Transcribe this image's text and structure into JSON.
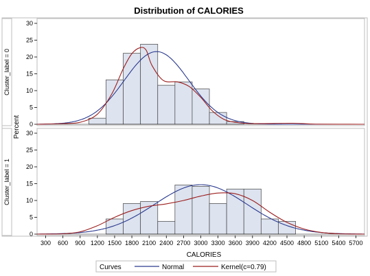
{
  "chart_data": {
    "type": "histogram",
    "title": "Distribution of CALORIES",
    "xlabel": "CALORIES",
    "ylabel": "Percent",
    "xlim": [
      150,
      5850
    ],
    "ylim": [
      0,
      30
    ],
    "x_ticks": [
      300,
      600,
      900,
      1200,
      1500,
      1800,
      2100,
      2400,
      2700,
      3000,
      3300,
      3600,
      3900,
      4200,
      4500,
      4800,
      5100,
      5400,
      5700
    ],
    "y_ticks": [
      0,
      5,
      10,
      15,
      20,
      25,
      30
    ],
    "bin_width": 300,
    "colors": {
      "bar_fill": "#dde3ef",
      "bar_edge": "#555555",
      "normal": "#2a3a8f",
      "kernel": "#9b1c1c"
    },
    "panels": [
      {
        "label": "Cluster_label = 0",
        "bin_starts": [
          1050,
          1350,
          1650,
          1950,
          2250,
          2550,
          2850,
          3150,
          3450
        ],
        "bin_values": [
          1.8,
          13.2,
          21.1,
          23.8,
          11.6,
          12.6,
          10.5,
          3.5,
          0.8
        ],
        "normal": {
          "mean": 2230,
          "sd": 560,
          "peak": 21.6
        },
        "kernel": {
          "points": [
            [
              150,
              0
            ],
            [
              600,
              0.2
            ],
            [
              900,
              0.6
            ],
            [
              1200,
              3.0
            ],
            [
              1450,
              9.0
            ],
            [
              1650,
              16.5
            ],
            [
              1800,
              21.0
            ],
            [
              1950,
              22.8
            ],
            [
              2050,
              22.0
            ],
            [
              2150,
              17.5
            ],
            [
              2350,
              13.0
            ],
            [
              2600,
              12.6
            ],
            [
              2800,
              11.2
            ],
            [
              3000,
              8.0
            ],
            [
              3200,
              4.0
            ],
            [
              3400,
              1.5
            ],
            [
              3600,
              0.6
            ],
            [
              3900,
              0.2
            ],
            [
              4600,
              0.3
            ],
            [
              5000,
              0.05
            ],
            [
              5850,
              0
            ]
          ]
        }
      },
      {
        "label": "Cluster_label = 1",
        "bin_starts": [
          1350,
          1650,
          1950,
          2250,
          2550,
          2850,
          3150,
          3450,
          3750,
          4050,
          4350
        ],
        "bin_values": [
          4.5,
          9.1,
          9.7,
          3.8,
          14.6,
          14.2,
          9.1,
          13.4,
          13.4,
          4.5,
          3.8
        ],
        "normal": {
          "mean": 3000,
          "sd": 800,
          "peak": 14.7
        },
        "kernel": {
          "points": [
            [
              150,
              0
            ],
            [
              600,
              0.1
            ],
            [
              900,
              0.7
            ],
            [
              1200,
              2.5
            ],
            [
              1500,
              5.0
            ],
            [
              1800,
              7.0
            ],
            [
              2100,
              8.3
            ],
            [
              2400,
              9.0
            ],
            [
              2700,
              10.0
            ],
            [
              3000,
              11.3
            ],
            [
              3300,
              12.2
            ],
            [
              3600,
              12.0
            ],
            [
              3900,
              10.0
            ],
            [
              4200,
              6.5
            ],
            [
              4500,
              3.5
            ],
            [
              4800,
              1.5
            ],
            [
              5100,
              0.5
            ],
            [
              5400,
              0.1
            ],
            [
              5850,
              0
            ]
          ]
        }
      }
    ]
  },
  "legend": {
    "title": "Curves",
    "items": [
      {
        "label": "Normal",
        "color": "#2a3a8f"
      },
      {
        "label": "Kernel(c=0.79)",
        "color": "#9b1c1c"
      }
    ]
  }
}
